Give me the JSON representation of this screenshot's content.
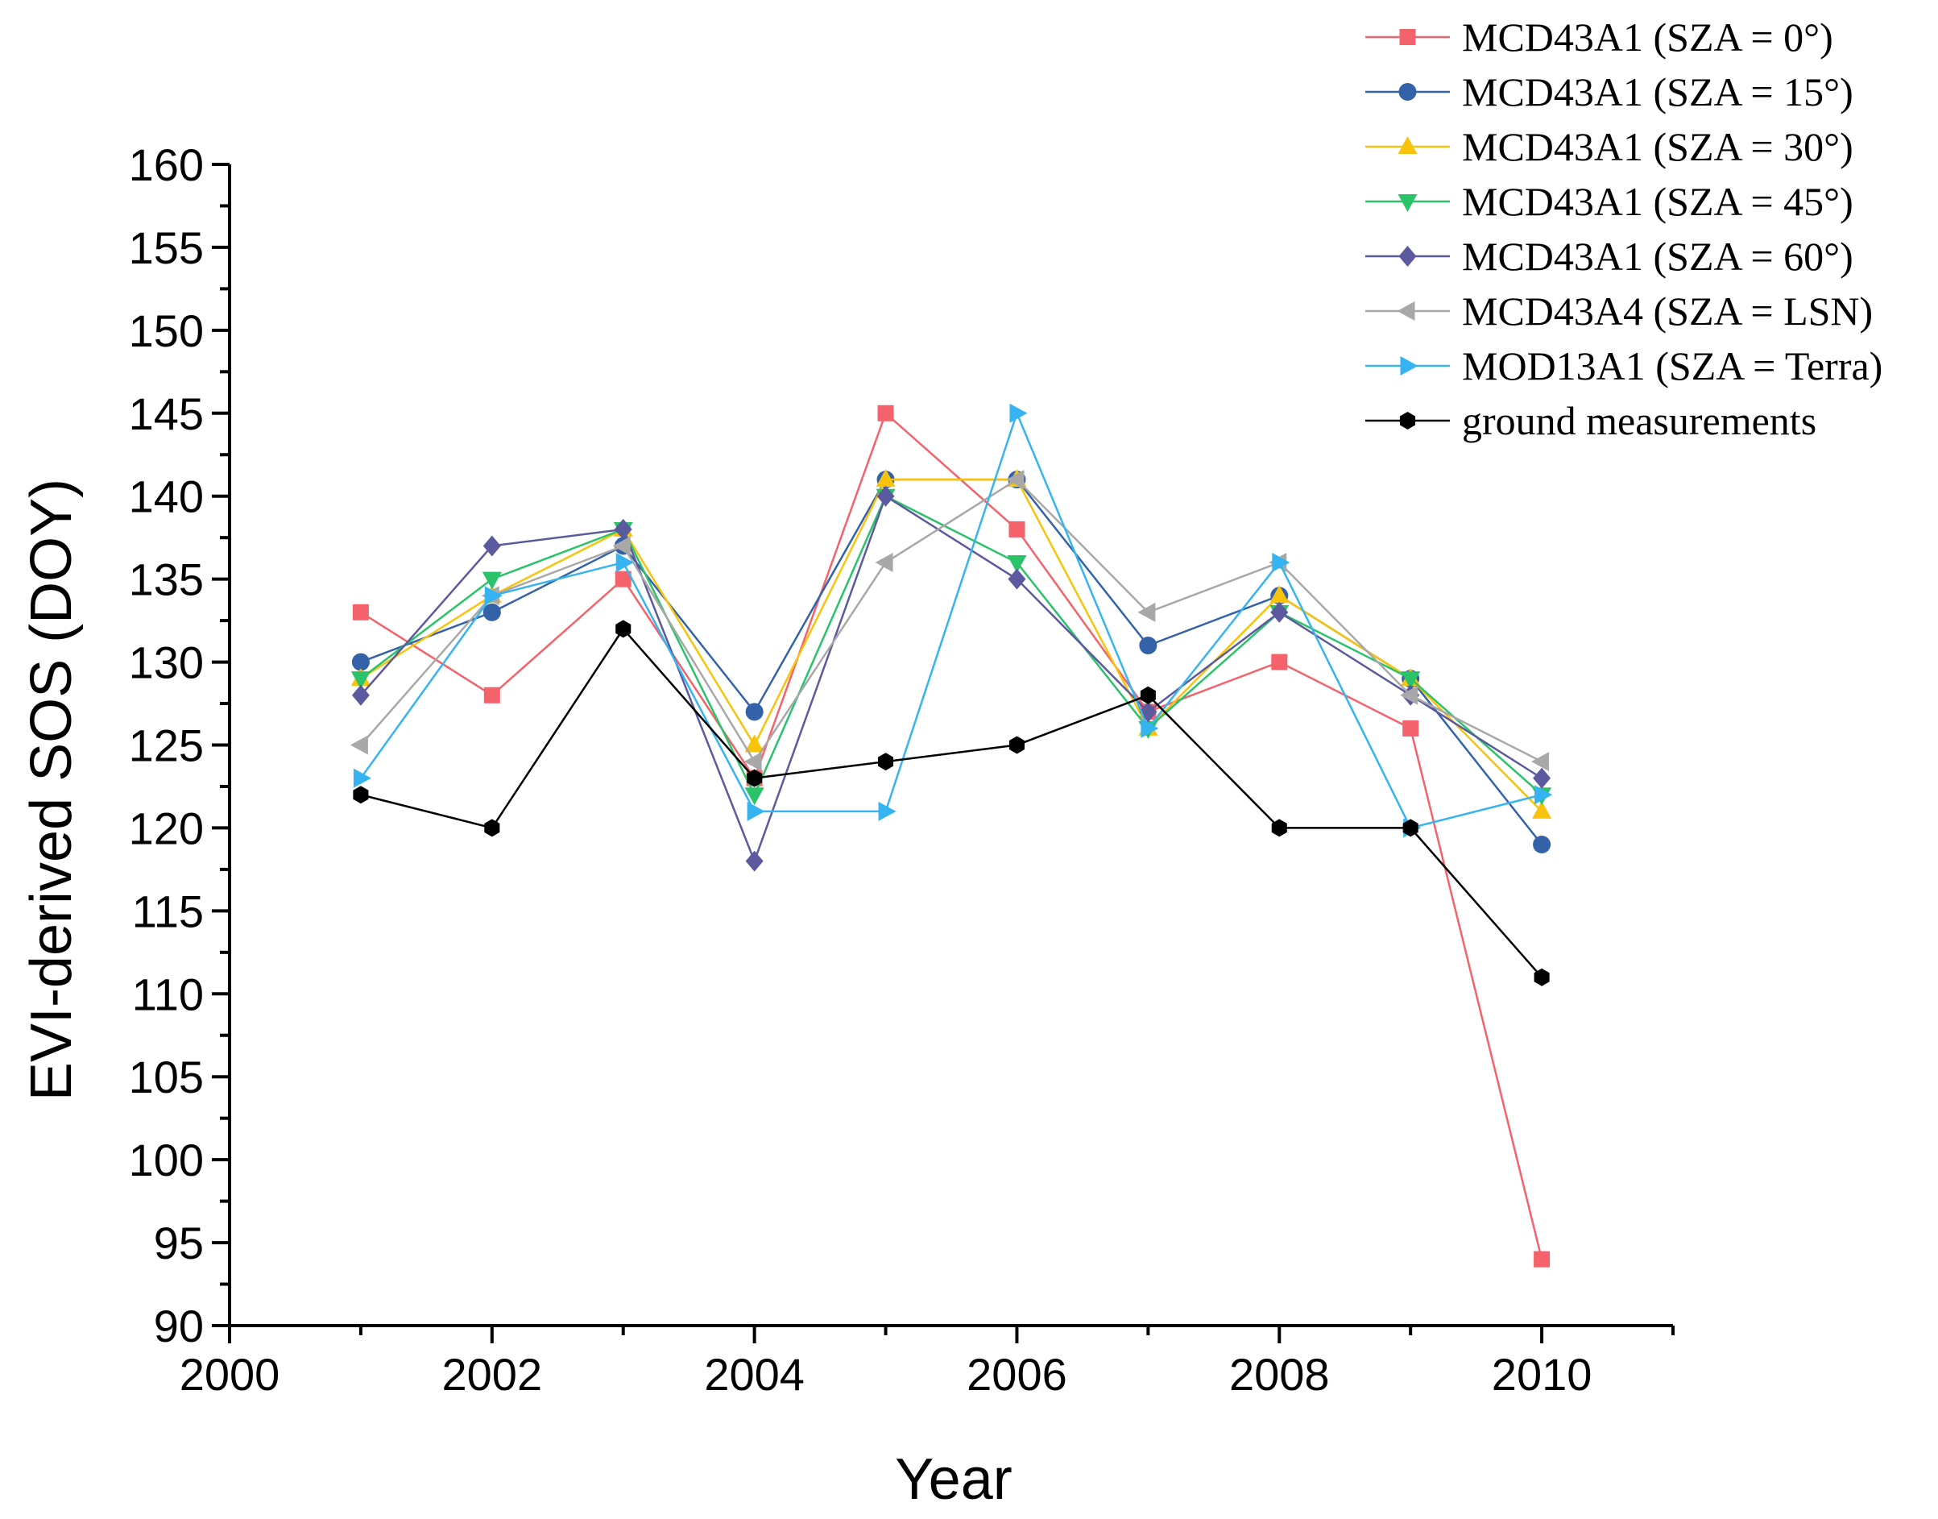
{
  "chart_data": {
    "type": "line",
    "title": "",
    "xlabel": "Year",
    "ylabel": "EVI-derived SOS (DOY)",
    "xlim": [
      2000,
      2011
    ],
    "ylim": [
      90,
      160
    ],
    "x_ticks": [
      2000,
      2002,
      2004,
      2006,
      2008,
      2010
    ],
    "x_tick_labels": [
      "2000",
      "2002",
      "2004",
      "2006",
      "2008",
      "2010"
    ],
    "y_ticks": [
      90,
      95,
      100,
      105,
      110,
      115,
      120,
      125,
      130,
      135,
      140,
      145,
      150,
      155,
      160
    ],
    "y_tick_labels": [
      "90",
      "95",
      "100",
      "105",
      "110",
      "115",
      "120",
      "125",
      "130",
      "135",
      "140",
      "145",
      "150",
      "155",
      "160"
    ],
    "grid": false,
    "legend_position": "top-right",
    "x": [
      2001,
      2002,
      2003,
      2004,
      2005,
      2006,
      2007,
      2008,
      2009,
      2010
    ],
    "series": [
      {
        "name": "MCD43A1 (SZA = 0°)",
        "color": "#f4636b",
        "marker": "square",
        "values": [
          133,
          128,
          135,
          123,
          145,
          138,
          127,
          130,
          126,
          94
        ]
      },
      {
        "name": "MCD43A1 (SZA = 15°)",
        "color": "#3462a9",
        "marker": "circle",
        "values": [
          130,
          133,
          137,
          127,
          141,
          141,
          131,
          134,
          129,
          119
        ]
      },
      {
        "name": "MCD43A1 (SZA = 30°)",
        "color": "#f9c30c",
        "marker": "triangle-up",
        "values": [
          129,
          134,
          138,
          125,
          141,
          141,
          126,
          134,
          129,
          121
        ]
      },
      {
        "name": "MCD43A1 (SZA = 45°)",
        "color": "#2ac36a",
        "marker": "triangle-down",
        "values": [
          129,
          135,
          138,
          122,
          140,
          136,
          126,
          133,
          129,
          122
        ]
      },
      {
        "name": "MCD43A1 (SZA = 60°)",
        "color": "#5b5a9e",
        "marker": "diamond",
        "values": [
          128,
          137,
          138,
          118,
          140,
          135,
          127,
          133,
          128,
          123
        ]
      },
      {
        "name": "MCD43A4 (SZA = LSN)",
        "color": "#a8a8a8",
        "marker": "triangle-left",
        "values": [
          125,
          134,
          137,
          124,
          136,
          141,
          133,
          136,
          128,
          124
        ]
      },
      {
        "name": "MOD13A1 (SZA = Terra)",
        "color": "#36b4f1",
        "marker": "triangle-right",
        "values": [
          123,
          134,
          136,
          121,
          121,
          145,
          126,
          136,
          120,
          122
        ]
      },
      {
        "name": "ground measurements",
        "color": "#000000",
        "marker": "hexagon",
        "values": [
          122,
          120,
          132,
          123,
          124,
          125,
          128,
          120,
          120,
          111
        ]
      }
    ]
  }
}
